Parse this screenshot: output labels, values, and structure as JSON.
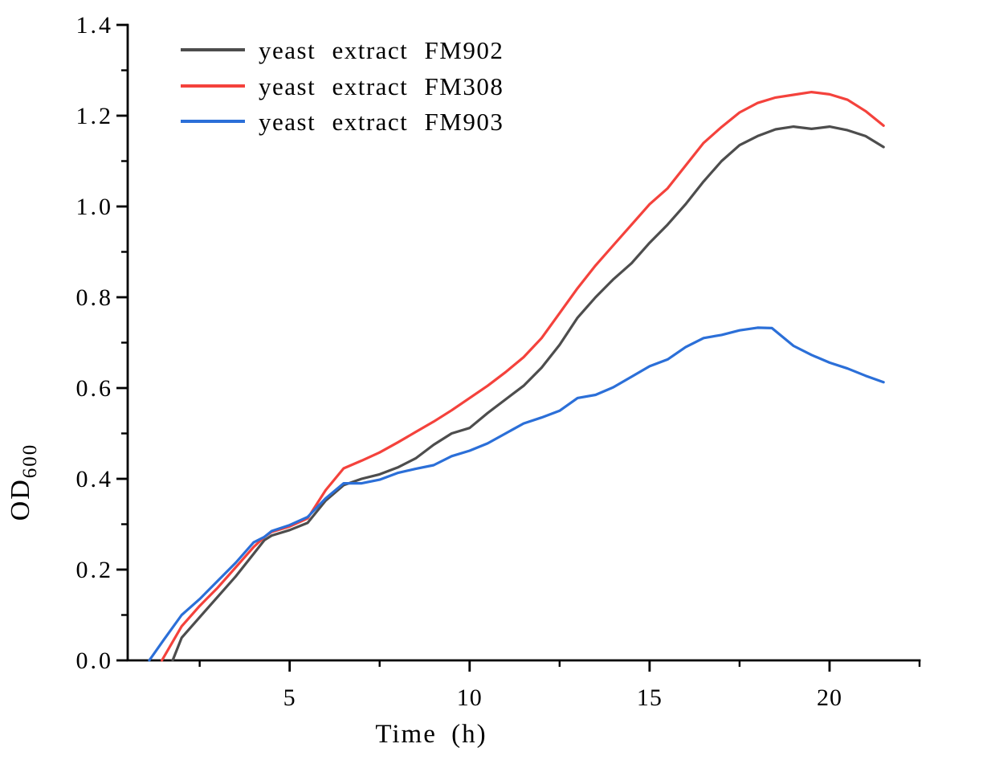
{
  "figure": {
    "background": "#ffffff",
    "axis_color": "#000000"
  },
  "chart_data": {
    "type": "line",
    "title": "",
    "xlabel": "Time (h)",
    "ylabel": "OD",
    "ylabel_sub": "600",
    "xlim": [
      0.5,
      22.5
    ],
    "ylim": [
      0,
      1.4
    ],
    "grid": false,
    "legend_position": "top-left-inside",
    "x_major_ticks": [
      5,
      10,
      15,
      20
    ],
    "x_major_tick_labels": [
      "5",
      "10",
      "15",
      "20"
    ],
    "x_minor_ticks": [
      2.5,
      7.5,
      12.5,
      17.5,
      22.5
    ],
    "y_major_ticks": [
      0,
      0.2,
      0.4,
      0.6,
      0.8,
      1.0,
      1.2,
      1.4
    ],
    "y_major_tick_labels": [
      "0.0",
      "0.2",
      "0.4",
      "0.6",
      "0.8",
      "1.0",
      "1.2",
      "1.4"
    ],
    "y_minor_ticks": [
      0.1,
      0.3,
      0.5,
      0.7,
      0.9,
      1.1,
      1.3
    ],
    "series": [
      {
        "name": "yeast extract FM902",
        "color": "#4d4d4d",
        "points": [
          [
            1.75,
            0
          ],
          [
            2,
            0.05
          ],
          [
            2.5,
            0.095
          ],
          [
            3,
            0.14
          ],
          [
            3.5,
            0.185
          ],
          [
            4,
            0.235
          ],
          [
            4.3,
            0.265
          ],
          [
            4.5,
            0.275
          ],
          [
            5,
            0.287
          ],
          [
            5.5,
            0.303
          ],
          [
            6,
            0.352
          ],
          [
            6.5,
            0.386
          ],
          [
            7,
            0.4
          ],
          [
            7.5,
            0.41
          ],
          [
            8,
            0.425
          ],
          [
            8.5,
            0.445
          ],
          [
            9,
            0.475
          ],
          [
            9.5,
            0.5
          ],
          [
            10,
            0.512
          ],
          [
            10.5,
            0.545
          ],
          [
            11,
            0.575
          ],
          [
            11.5,
            0.605
          ],
          [
            12,
            0.645
          ],
          [
            12.5,
            0.695
          ],
          [
            13,
            0.755
          ],
          [
            13.5,
            0.8
          ],
          [
            14,
            0.84
          ],
          [
            14.5,
            0.875
          ],
          [
            15,
            0.92
          ],
          [
            15.5,
            0.96
          ],
          [
            16,
            1.005
          ],
          [
            16.5,
            1.055
          ],
          [
            17,
            1.1
          ],
          [
            17.5,
            1.135
          ],
          [
            18,
            1.155
          ],
          [
            18.5,
            1.17
          ],
          [
            19,
            1.176
          ],
          [
            19.5,
            1.171
          ],
          [
            20,
            1.176
          ],
          [
            20.5,
            1.168
          ],
          [
            21,
            1.155
          ],
          [
            21.5,
            1.131
          ]
        ]
      },
      {
        "name": "yeast extract FM308",
        "color": "#f4423c",
        "points": [
          [
            1.45,
            0
          ],
          [
            2,
            0.075
          ],
          [
            2.5,
            0.12
          ],
          [
            3,
            0.16
          ],
          [
            3.5,
            0.205
          ],
          [
            4,
            0.25
          ],
          [
            4.3,
            0.272
          ],
          [
            4.5,
            0.283
          ],
          [
            5,
            0.295
          ],
          [
            5.5,
            0.313
          ],
          [
            6,
            0.375
          ],
          [
            6.5,
            0.423
          ],
          [
            7,
            0.44
          ],
          [
            7.5,
            0.458
          ],
          [
            8,
            0.48
          ],
          [
            8.5,
            0.503
          ],
          [
            9,
            0.526
          ],
          [
            9.5,
            0.551
          ],
          [
            10,
            0.578
          ],
          [
            10.5,
            0.605
          ],
          [
            11,
            0.635
          ],
          [
            11.5,
            0.668
          ],
          [
            12,
            0.71
          ],
          [
            12.5,
            0.765
          ],
          [
            13,
            0.82
          ],
          [
            13.5,
            0.87
          ],
          [
            14,
            0.915
          ],
          [
            14.5,
            0.96
          ],
          [
            15,
            1.005
          ],
          [
            15.5,
            1.04
          ],
          [
            16,
            1.09
          ],
          [
            16.5,
            1.14
          ],
          [
            17,
            1.175
          ],
          [
            17.5,
            1.207
          ],
          [
            18,
            1.228
          ],
          [
            18.5,
            1.24
          ],
          [
            19,
            1.246
          ],
          [
            19.5,
            1.252
          ],
          [
            20,
            1.247
          ],
          [
            20.5,
            1.235
          ],
          [
            21,
            1.21
          ],
          [
            21.5,
            1.178
          ]
        ]
      },
      {
        "name": "yeast extract FM903",
        "color": "#2b6fd8",
        "points": [
          [
            1.1,
            0
          ],
          [
            1.5,
            0.045
          ],
          [
            2,
            0.1
          ],
          [
            2.5,
            0.135
          ],
          [
            3,
            0.175
          ],
          [
            3.5,
            0.215
          ],
          [
            4,
            0.26
          ],
          [
            4.3,
            0.272
          ],
          [
            4.5,
            0.285
          ],
          [
            5,
            0.298
          ],
          [
            5.5,
            0.316
          ],
          [
            6,
            0.357
          ],
          [
            6.5,
            0.39
          ],
          [
            7,
            0.39
          ],
          [
            7.5,
            0.398
          ],
          [
            8,
            0.413
          ],
          [
            8.5,
            0.422
          ],
          [
            9,
            0.43
          ],
          [
            9.5,
            0.45
          ],
          [
            10,
            0.462
          ],
          [
            10.5,
            0.478
          ],
          [
            11,
            0.5
          ],
          [
            11.5,
            0.522
          ],
          [
            12,
            0.535
          ],
          [
            12.5,
            0.55
          ],
          [
            13,
            0.578
          ],
          [
            13.5,
            0.585
          ],
          [
            14,
            0.602
          ],
          [
            14.5,
            0.625
          ],
          [
            15,
            0.648
          ],
          [
            15.5,
            0.663
          ],
          [
            16,
            0.69
          ],
          [
            16.5,
            0.71
          ],
          [
            17,
            0.717
          ],
          [
            17.5,
            0.727
          ],
          [
            18,
            0.733
          ],
          [
            18.4,
            0.732
          ],
          [
            19,
            0.693
          ],
          [
            19.5,
            0.673
          ],
          [
            20,
            0.656
          ],
          [
            20.5,
            0.643
          ],
          [
            21,
            0.627
          ],
          [
            21.5,
            0.613
          ]
        ]
      }
    ]
  }
}
